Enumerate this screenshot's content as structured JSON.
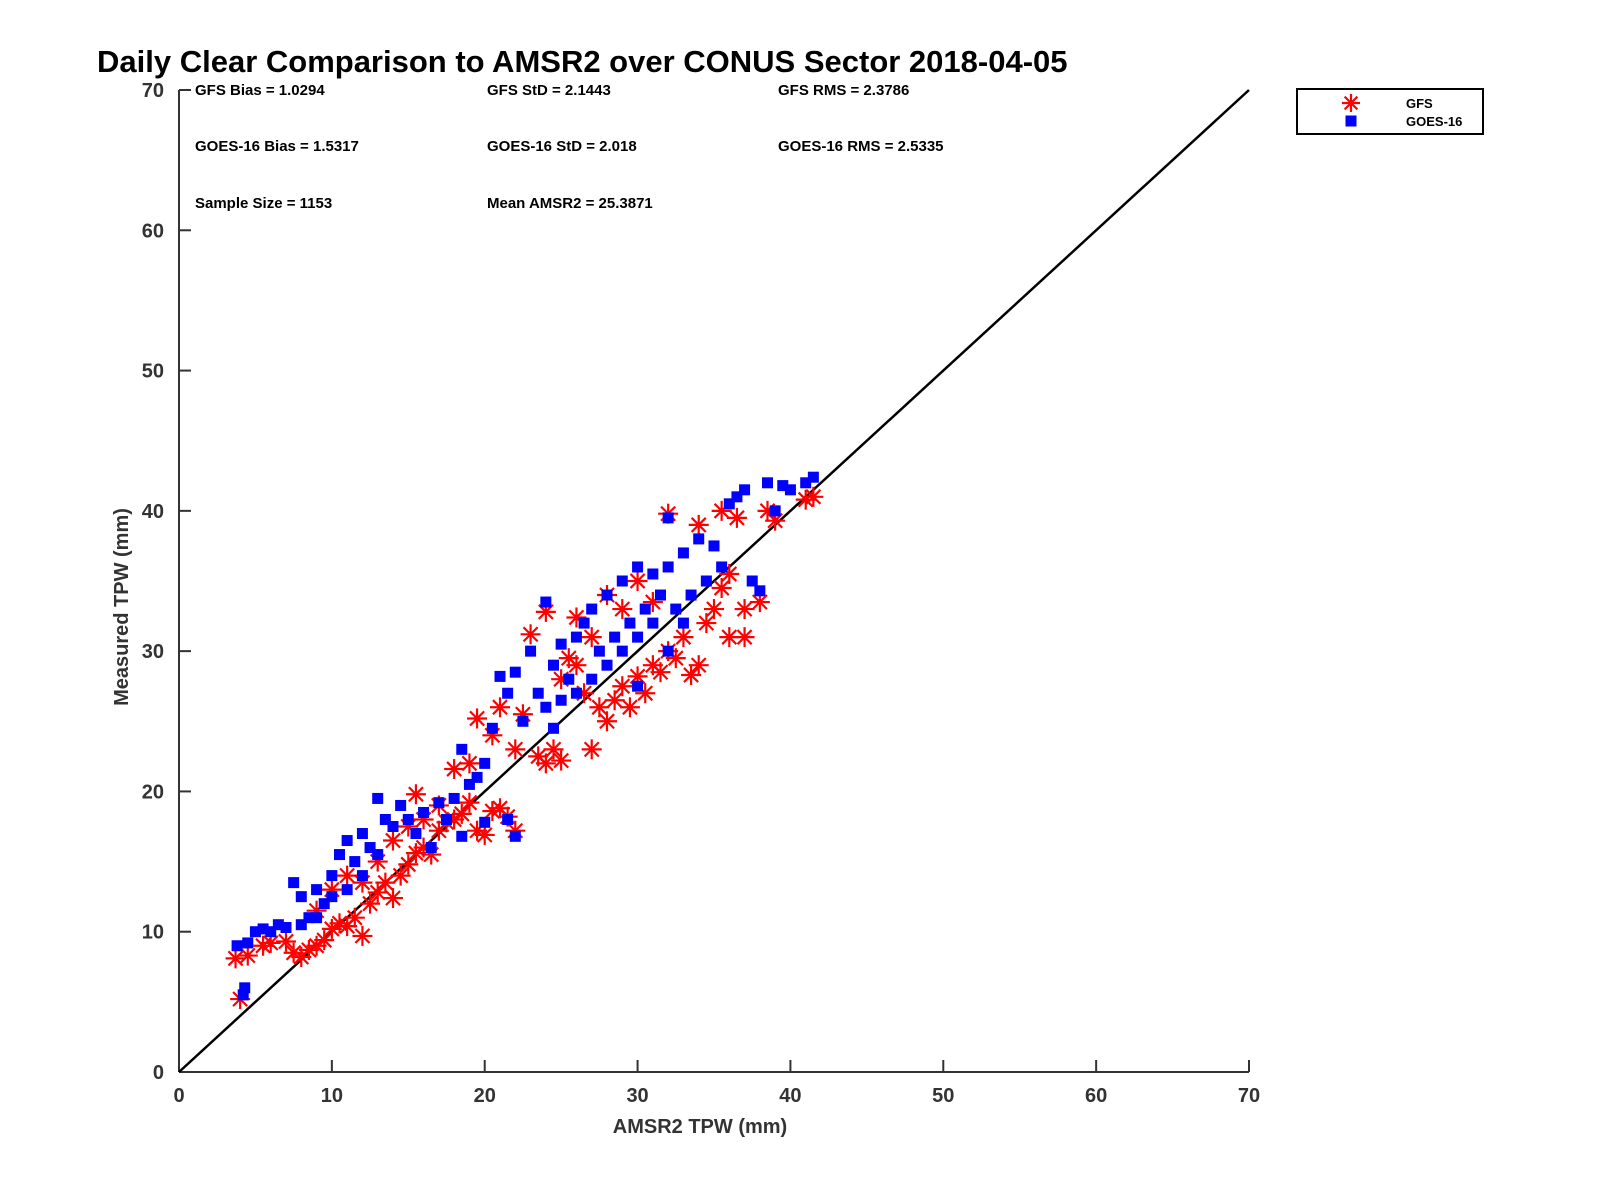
{
  "chart_data": {
    "type": "scatter",
    "title": "Daily Clear Comparison to AMSR2 over CONUS Sector 2018-04-05",
    "xlabel": "AMSR2 TPW (mm)",
    "ylabel": "Measured TPW (mm)",
    "xlim": [
      0,
      70
    ],
    "ylim": [
      0,
      70
    ],
    "xticks": [
      "0",
      "10",
      "20",
      "30",
      "40",
      "50",
      "60",
      "70"
    ],
    "yticks": [
      "0",
      "10",
      "20",
      "30",
      "40",
      "50",
      "60",
      "70"
    ],
    "grid": false,
    "legend_position": "outside-top-right",
    "reference_line": {
      "type": "identity",
      "from": [
        0,
        0
      ],
      "to": [
        70,
        70
      ],
      "color": "#000000"
    },
    "stats": {
      "gfs_bias": "GFS Bias = 1.0294",
      "gfs_std": "GFS StD = 2.1443",
      "gfs_rms": "GFS RMS = 2.3786",
      "goes_bias": "GOES-16 Bias = 1.5317",
      "goes_std": "GOES-16 StD = 2.018",
      "goes_rms": "GOES-16 RMS = 2.5335",
      "sample_size": "Sample Size = 1153",
      "mean_amsr2": "Mean AMSR2 = 25.3871"
    },
    "series": [
      {
        "name": "GFS",
        "marker": "asterisk",
        "color": "#ff0000",
        "points": [
          [
            3.7,
            8.1
          ],
          [
            4.0,
            5.2
          ],
          [
            4.5,
            8.3
          ],
          [
            5.5,
            9.0
          ],
          [
            6.0,
            9.2
          ],
          [
            7.0,
            9.3
          ],
          [
            7.5,
            8.5
          ],
          [
            8.0,
            8.2
          ],
          [
            8.5,
            8.7
          ],
          [
            9.0,
            9.0
          ],
          [
            9.5,
            9.4
          ],
          [
            10.0,
            10.2
          ],
          [
            10.5,
            10.6
          ],
          [
            11.0,
            10.4
          ],
          [
            11.5,
            11.0
          ],
          [
            12.0,
            9.7
          ],
          [
            12.5,
            12.0
          ],
          [
            13.0,
            12.8
          ],
          [
            13.5,
            13.5
          ],
          [
            14.0,
            12.4
          ],
          [
            14.5,
            14.0
          ],
          [
            15.0,
            14.8
          ],
          [
            15.5,
            15.6
          ],
          [
            16.0,
            16.0
          ],
          [
            16.5,
            15.5
          ],
          [
            17.0,
            17.2
          ],
          [
            17.5,
            17.8
          ],
          [
            18.0,
            18.0
          ],
          [
            18.5,
            18.4
          ],
          [
            19.0,
            19.2
          ],
          [
            19.5,
            17.2
          ],
          [
            20.0,
            16.9
          ],
          [
            20.5,
            18.6
          ],
          [
            21.0,
            18.8
          ],
          [
            21.5,
            18.2
          ],
          [
            22.0,
            17.2
          ],
          [
            9.0,
            11.5
          ],
          [
            10.0,
            13.0
          ],
          [
            11.0,
            14.0
          ],
          [
            12.0,
            13.5
          ],
          [
            13.0,
            15.0
          ],
          [
            14.0,
            16.5
          ],
          [
            15.0,
            17.5
          ],
          [
            15.5,
            19.8
          ],
          [
            16.0,
            18.0
          ],
          [
            17.0,
            19.0
          ],
          [
            18.0,
            21.6
          ],
          [
            19.0,
            22.0
          ],
          [
            19.5,
            25.2
          ],
          [
            20.5,
            24.0
          ],
          [
            21.0,
            26.0
          ],
          [
            22.0,
            23.0
          ],
          [
            22.5,
            25.5
          ],
          [
            23.0,
            31.2
          ],
          [
            23.5,
            22.5
          ],
          [
            24.0,
            22.0
          ],
          [
            24.5,
            23.0
          ],
          [
            25.0,
            22.2
          ],
          [
            24.0,
            32.8
          ],
          [
            25.5,
            29.5
          ],
          [
            26.0,
            32.4
          ],
          [
            26.5,
            27.0
          ],
          [
            27.0,
            23.0
          ],
          [
            27.5,
            26.0
          ],
          [
            28.0,
            25.0
          ],
          [
            28.5,
            26.5
          ],
          [
            29.0,
            27.5
          ],
          [
            29.5,
            26.0
          ],
          [
            30.0,
            28.2
          ],
          [
            30.5,
            27.0
          ],
          [
            31.0,
            29.0
          ],
          [
            31.5,
            28.5
          ],
          [
            32.0,
            30.0
          ],
          [
            32.0,
            39.8
          ],
          [
            32.5,
            29.5
          ],
          [
            33.0,
            31.0
          ],
          [
            33.5,
            28.3
          ],
          [
            34.0,
            29.0
          ],
          [
            34.0,
            39.0
          ],
          [
            34.5,
            32.0
          ],
          [
            35.0,
            33.0
          ],
          [
            35.5,
            34.5
          ],
          [
            35.5,
            40.0
          ],
          [
            36.0,
            35.5
          ],
          [
            36.0,
            31.0
          ],
          [
            36.5,
            39.5
          ],
          [
            37.0,
            33.0
          ],
          [
            37.0,
            31.0
          ],
          [
            38.0,
            33.5
          ],
          [
            38.5,
            40.0
          ],
          [
            39.0,
            39.3
          ],
          [
            41.0,
            40.8
          ],
          [
            41.5,
            41.0
          ],
          [
            28.0,
            34.0
          ],
          [
            29.0,
            33.0
          ],
          [
            30.0,
            35.0
          ],
          [
            31.0,
            33.5
          ],
          [
            26.0,
            29.0
          ],
          [
            27.0,
            31.0
          ],
          [
            25.0,
            28.0
          ]
        ]
      },
      {
        "name": "GOES-16",
        "marker": "square",
        "color": "#0000ff",
        "points": [
          [
            3.8,
            9.0
          ],
          [
            4.2,
            5.5
          ],
          [
            4.3,
            6.0
          ],
          [
            4.5,
            9.2
          ],
          [
            5.0,
            10.0
          ],
          [
            5.5,
            10.2
          ],
          [
            6.0,
            10.0
          ],
          [
            6.5,
            10.5
          ],
          [
            7.0,
            10.3
          ],
          [
            7.5,
            13.5
          ],
          [
            8.0,
            12.5
          ],
          [
            8.5,
            11.0
          ],
          [
            9.0,
            13.0
          ],
          [
            9.5,
            12.0
          ],
          [
            10.0,
            14.0
          ],
          [
            10.5,
            15.5
          ],
          [
            11.0,
            16.5
          ],
          [
            11.5,
            15.0
          ],
          [
            12.0,
            17.0
          ],
          [
            12.5,
            16.0
          ],
          [
            13.0,
            19.5
          ],
          [
            13.5,
            18.0
          ],
          [
            14.0,
            17.5
          ],
          [
            14.5,
            19.0
          ],
          [
            15.0,
            18.0
          ],
          [
            15.5,
            17.0
          ],
          [
            16.0,
            18.5
          ],
          [
            16.5,
            16.0
          ],
          [
            17.0,
            19.2
          ],
          [
            17.5,
            18.0
          ],
          [
            18.0,
            19.5
          ],
          [
            18.5,
            16.8
          ],
          [
            18.5,
            23.0
          ],
          [
            19.0,
            20.5
          ],
          [
            19.5,
            21.0
          ],
          [
            20.0,
            22.0
          ],
          [
            20.0,
            17.8
          ],
          [
            20.5,
            24.5
          ],
          [
            21.0,
            28.2
          ],
          [
            21.5,
            27.0
          ],
          [
            21.5,
            18.0
          ],
          [
            22.0,
            28.5
          ],
          [
            22.0,
            16.8
          ],
          [
            22.5,
            25.0
          ],
          [
            23.0,
            30.0
          ],
          [
            23.5,
            27.0
          ],
          [
            24.0,
            26.0
          ],
          [
            24.0,
            33.5
          ],
          [
            24.5,
            29.0
          ],
          [
            25.0,
            30.5
          ],
          [
            25.5,
            28.0
          ],
          [
            26.0,
            31.0
          ],
          [
            26.5,
            32.0
          ],
          [
            27.0,
            33.0
          ],
          [
            27.5,
            30.0
          ],
          [
            28.0,
            34.0
          ],
          [
            28.5,
            31.0
          ],
          [
            29.0,
            35.0
          ],
          [
            29.5,
            32.0
          ],
          [
            30.0,
            36.0
          ],
          [
            30.5,
            33.0
          ],
          [
            31.0,
            35.5
          ],
          [
            31.5,
            34.0
          ],
          [
            32.0,
            36.0
          ],
          [
            32.0,
            39.5
          ],
          [
            32.5,
            33.0
          ],
          [
            33.0,
            37.0
          ],
          [
            33.5,
            34.0
          ],
          [
            34.0,
            38.0
          ],
          [
            34.5,
            35.0
          ],
          [
            35.0,
            37.5
          ],
          [
            35.5,
            36.0
          ],
          [
            36.0,
            40.5
          ],
          [
            36.5,
            41.0
          ],
          [
            37.0,
            41.5
          ],
          [
            37.5,
            35.0
          ],
          [
            38.0,
            34.3
          ],
          [
            38.5,
            42.0
          ],
          [
            39.0,
            40.0
          ],
          [
            39.5,
            41.8
          ],
          [
            40.0,
            41.5
          ],
          [
            41.0,
            42.0
          ],
          [
            41.5,
            42.4
          ],
          [
            28.0,
            29.0
          ],
          [
            29.0,
            30.0
          ],
          [
            30.0,
            31.0
          ],
          [
            31.0,
            32.0
          ],
          [
            27.0,
            28.0
          ],
          [
            26.0,
            27.0
          ],
          [
            25.0,
            26.5
          ],
          [
            24.5,
            24.5
          ],
          [
            30.0,
            27.5
          ],
          [
            32.0,
            30.0
          ],
          [
            33.0,
            32.0
          ],
          [
            8.0,
            10.5
          ],
          [
            9.0,
            11.0
          ],
          [
            10.0,
            12.5
          ],
          [
            11.0,
            13.0
          ],
          [
            12.0,
            14.0
          ],
          [
            13.0,
            15.5
          ]
        ]
      }
    ]
  }
}
